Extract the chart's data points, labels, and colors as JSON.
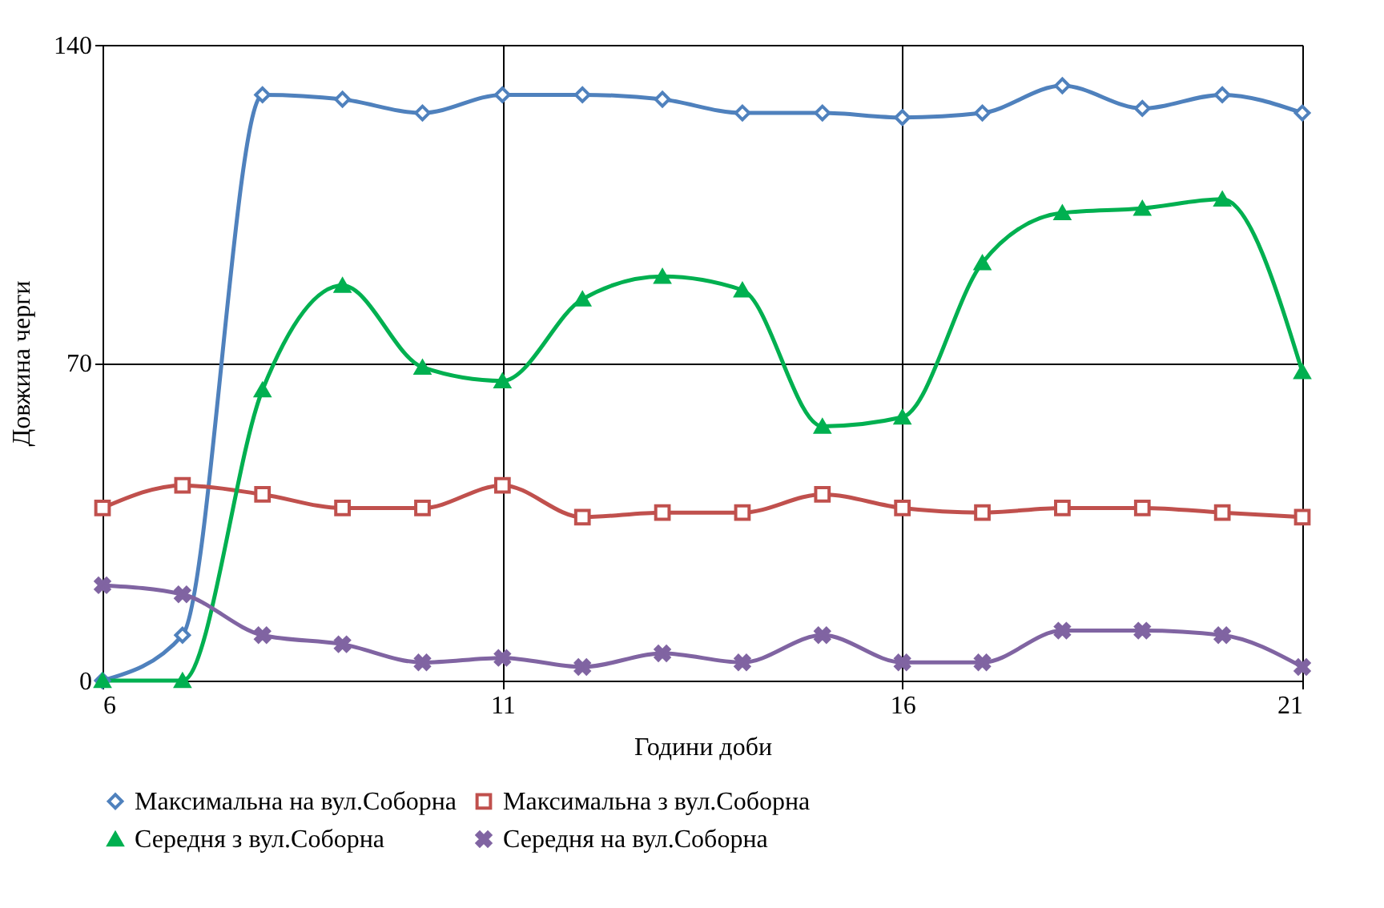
{
  "chart_data": {
    "type": "line",
    "xlabel": "Години доби",
    "ylabel": "Довжина черги",
    "x": [
      6,
      7,
      8,
      9,
      10,
      11,
      12,
      13,
      14,
      15,
      16,
      17,
      18,
      19,
      20,
      21
    ],
    "xlim": [
      6,
      21
    ],
    "xticks": [
      6,
      11,
      16,
      21
    ],
    "ylim": [
      0,
      140
    ],
    "yticks": [
      0,
      70,
      140
    ],
    "grid": true,
    "legend": "bottom",
    "line_style": "solid",
    "series": [
      {
        "name": "Максимальна на вул.Соборна",
        "color": "#4f81bd",
        "marker": "diamond",
        "values": [
          0,
          10,
          129,
          128,
          125,
          129,
          129,
          128,
          125,
          125,
          124,
          125,
          131,
          126,
          129,
          125
        ]
      },
      {
        "name": "Максимальна з вул.Соборна",
        "color": "#c0504d",
        "marker": "square",
        "values": [
          38,
          43,
          41,
          38,
          38,
          43,
          36,
          37,
          37,
          41,
          38,
          37,
          38,
          38,
          37,
          36
        ]
      },
      {
        "name": "Середня з вул.Соборна",
        "color": "#00b050",
        "marker": "triangle",
        "values": [
          0,
          0,
          64,
          87,
          69,
          66,
          84,
          89,
          86,
          56,
          58,
          92,
          103,
          104,
          106,
          68
        ]
      },
      {
        "name": "Середня на вул.Соборна",
        "color": "#8064a2",
        "marker": "cross",
        "values": [
          21,
          19,
          10,
          8,
          4,
          5,
          3,
          6,
          4,
          10,
          4,
          4,
          11,
          11,
          10,
          3
        ]
      }
    ]
  }
}
